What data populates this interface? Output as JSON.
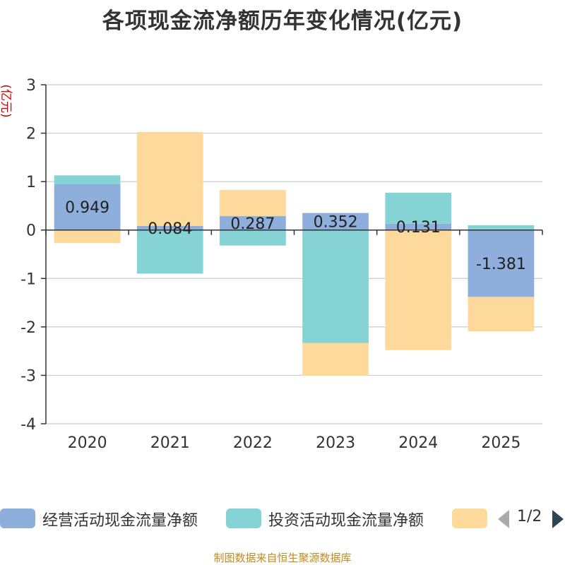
{
  "title": "各项现金流净额历年变化情况(亿元)",
  "footer": "制图数据来自恒生聚源数据库",
  "legend": {
    "items": [
      {
        "label": "经营活动现金流量净额",
        "color": "#8eaedb"
      },
      {
        "label": "投资活动现金流量净额",
        "color": "#86d3d6"
      },
      {
        "label": "",
        "color": "#fdd99c"
      }
    ],
    "page_text": "1/2"
  },
  "chart_data": {
    "type": "bar",
    "stacked": true,
    "categories": [
      "2020",
      "2021",
      "2022",
      "2023",
      "2024",
      "2025"
    ],
    "ylabel": "(亿元)",
    "ylim": [
      -4,
      3
    ],
    "yticks": [
      "3",
      "2",
      "1",
      "0",
      "-1",
      "-2",
      "-3",
      "-4"
    ],
    "grid": true,
    "legend_position": "bottom",
    "series": [
      {
        "name": "经营活动现金流量净额",
        "color": "#8eaedb",
        "values": [
          0.949,
          0.084,
          0.287,
          0.352,
          0.131,
          -1.381
        ],
        "labels": [
          "0.949",
          "0.084",
          "0.287",
          "0.352",
          "0.131",
          "-1.381"
        ]
      },
      {
        "name": "投资活动现金流量净额",
        "color": "#86d3d6",
        "values": [
          0.18,
          -0.9,
          -0.32,
          -2.33,
          0.64,
          0.1
        ]
      },
      {
        "name": "",
        "color": "#fdd99c",
        "values": [
          -0.27,
          1.94,
          0.54,
          -0.68,
          -2.48,
          -0.71
        ]
      }
    ]
  }
}
